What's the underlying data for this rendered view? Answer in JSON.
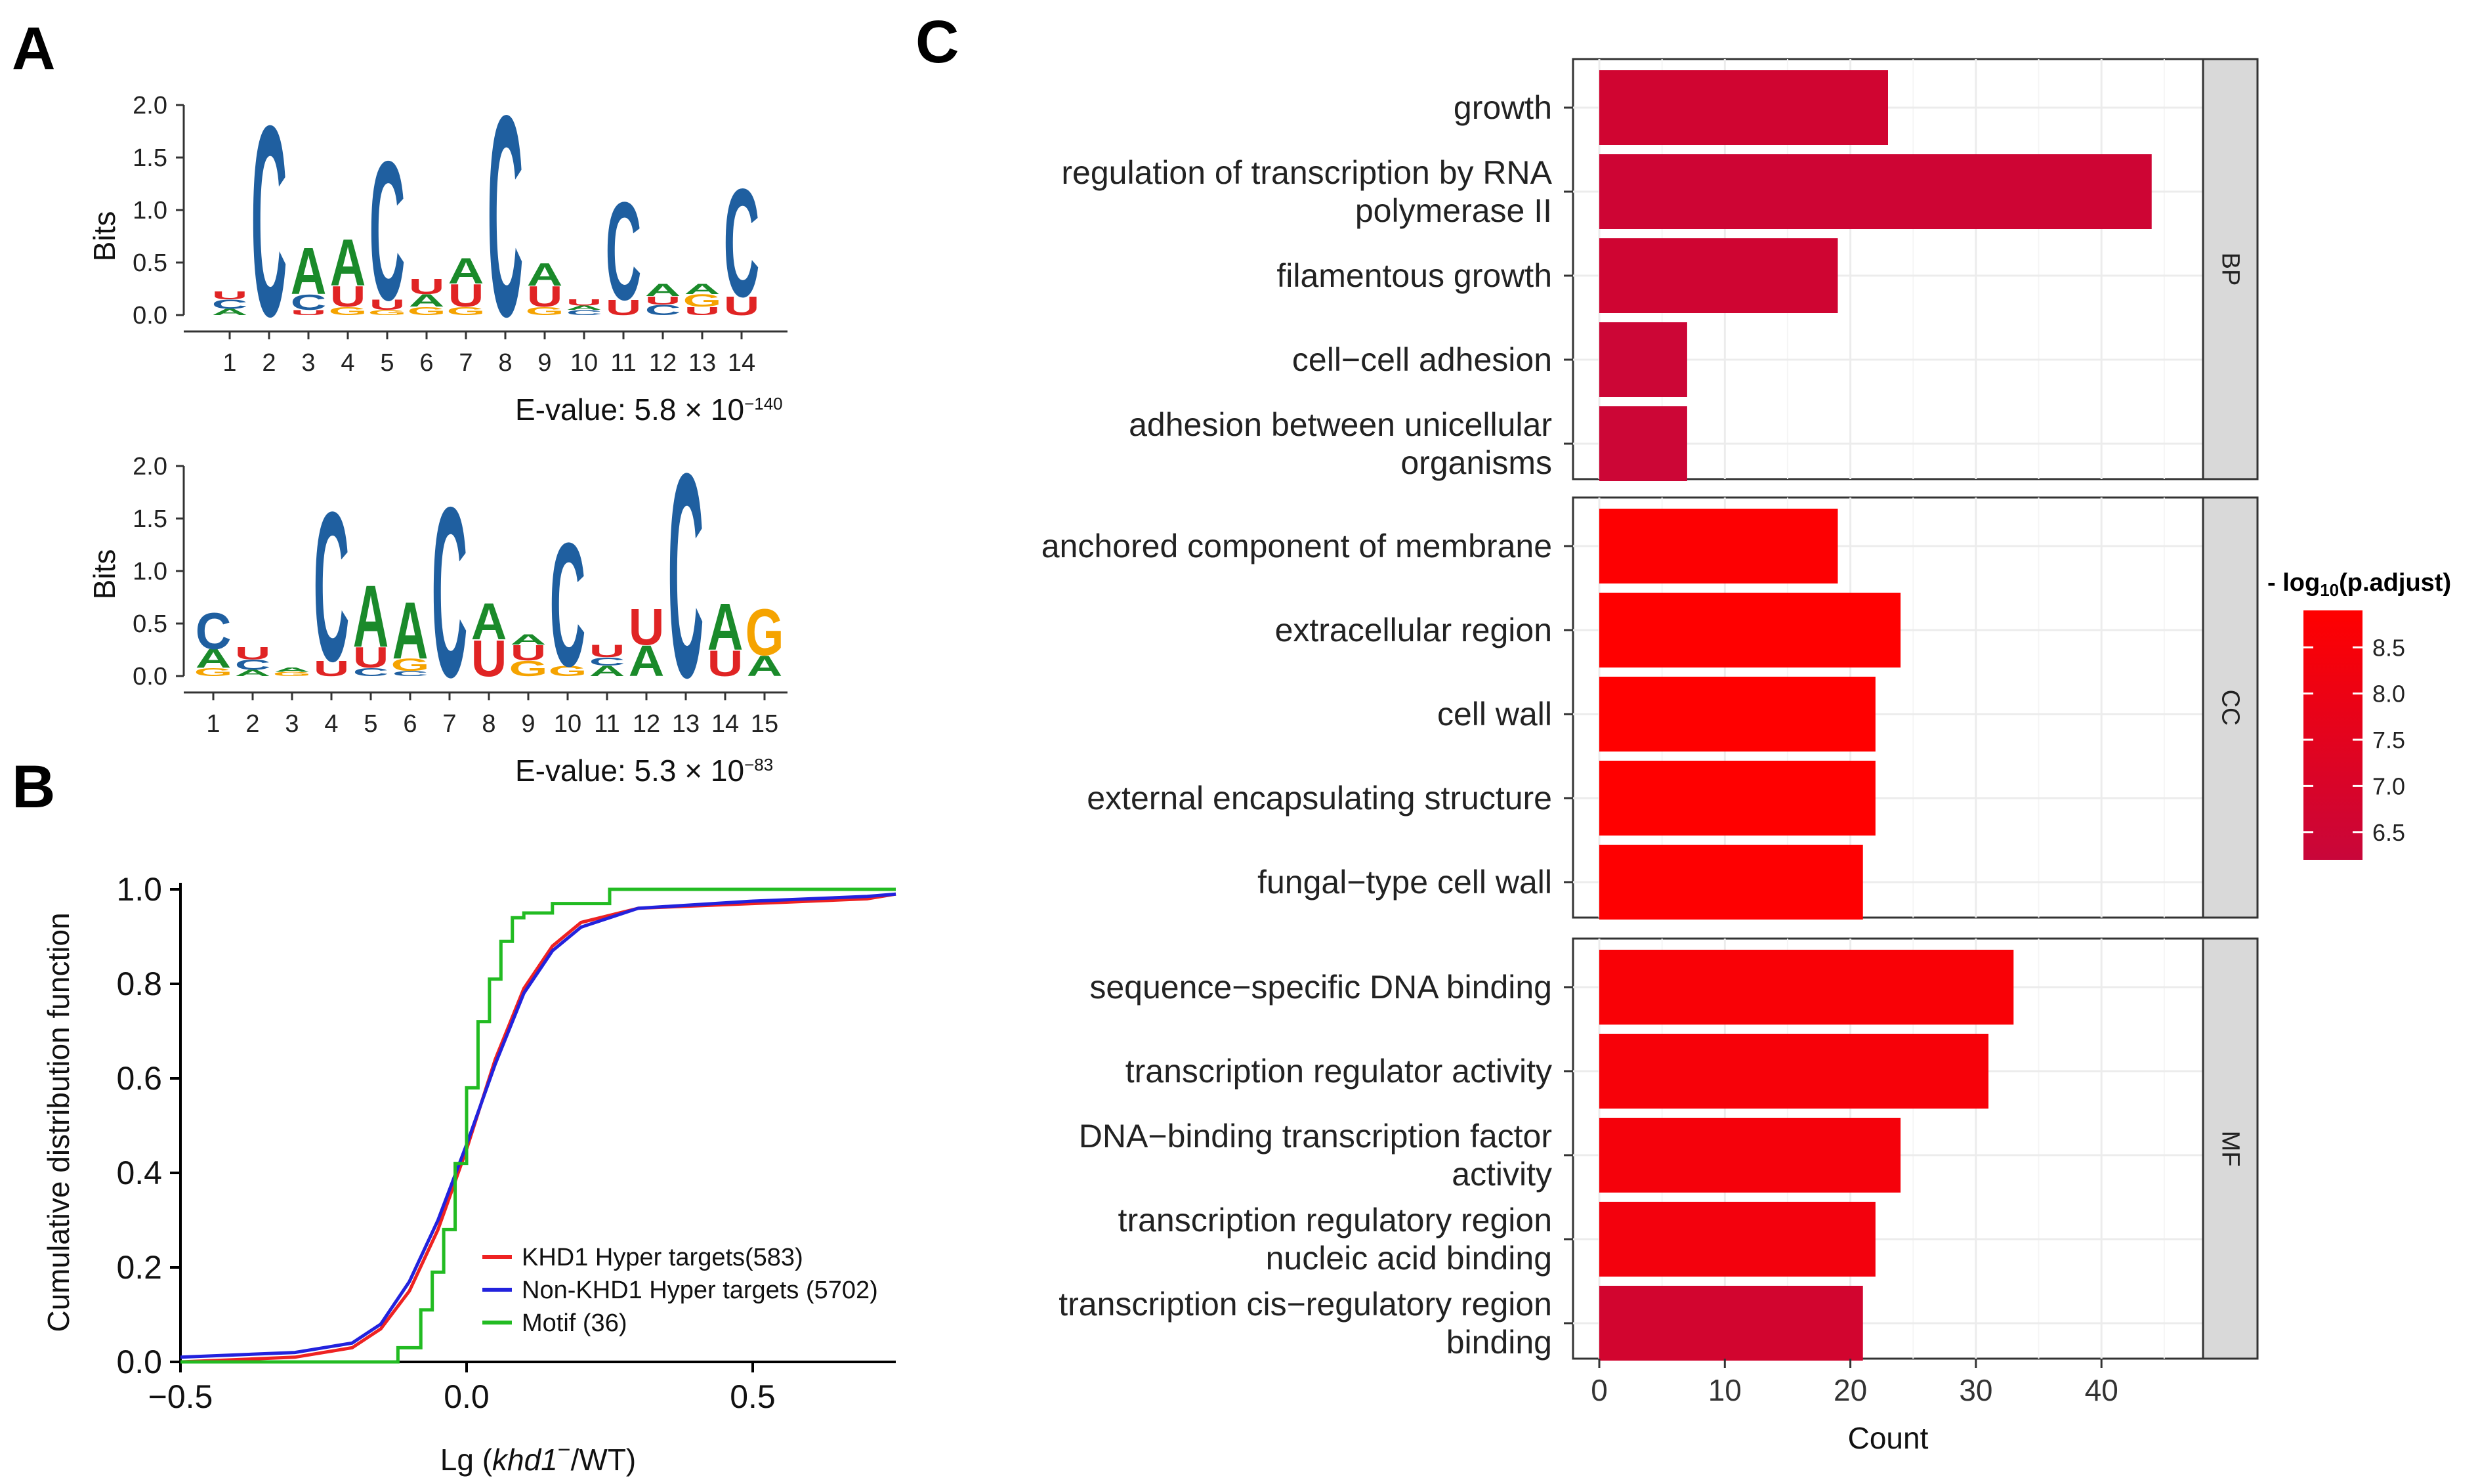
{
  "panels": {
    "A": "A",
    "B": "B",
    "C": "C"
  },
  "colors": {
    "A": "#1a8a2a",
    "C": "#1f5fa0",
    "G": "#f5a300",
    "U": "#e02424",
    "krd": "#ee2222",
    "non": "#2222dd",
    "motif": "#22bb22",
    "gradient_low": "#c8063a",
    "gradient_high": "#ff0000",
    "strip": "#d9d9d9",
    "grid": "#ececec"
  },
  "motif_logos": [
    {
      "ylabel": "Bits",
      "yticks": [
        "0.0",
        "0.5",
        "1.0",
        "1.5",
        "2.0"
      ],
      "evalue_text": "E-value: 5.8 × 10",
      "evalue_exp": "−140",
      "positions": [
        {
          "x": "1",
          "letters": [
            [
              "A",
              0.06
            ],
            [
              "C",
              0.09
            ],
            [
              "U",
              0.08
            ]
          ]
        },
        {
          "x": "2",
          "letters": [
            [
              "C",
              1.85
            ]
          ]
        },
        {
          "x": "3",
          "letters": [
            [
              "U",
              0.05
            ],
            [
              "C",
              0.15
            ],
            [
              "A",
              0.45
            ]
          ]
        },
        {
          "x": "4",
          "letters": [
            [
              "G",
              0.08
            ],
            [
              "U",
              0.2
            ],
            [
              "A",
              0.45
            ]
          ]
        },
        {
          "x": "5",
          "letters": [
            [
              "G",
              0.05
            ],
            [
              "U",
              0.1
            ],
            [
              "C",
              1.35
            ]
          ]
        },
        {
          "x": "6",
          "letters": [
            [
              "G",
              0.08
            ],
            [
              "A",
              0.12
            ],
            [
              "U",
              0.15
            ]
          ]
        },
        {
          "x": "7",
          "letters": [
            [
              "G",
              0.08
            ],
            [
              "U",
              0.22
            ],
            [
              "A",
              0.25
            ]
          ]
        },
        {
          "x": "8",
          "letters": [
            [
              "C",
              1.95
            ]
          ]
        },
        {
          "x": "9",
          "letters": [
            [
              "G",
              0.08
            ],
            [
              "U",
              0.2
            ],
            [
              "A",
              0.22
            ]
          ]
        },
        {
          "x": "10",
          "letters": [
            [
              "C",
              0.05
            ],
            [
              "A",
              0.04
            ],
            [
              "U",
              0.06
            ]
          ]
        },
        {
          "x": "11",
          "letters": [
            [
              "U",
              0.15
            ],
            [
              "C",
              0.95
            ]
          ]
        },
        {
          "x": "12",
          "letters": [
            [
              "C",
              0.1
            ],
            [
              "U",
              0.08
            ],
            [
              "A",
              0.12
            ]
          ]
        },
        {
          "x": "13",
          "letters": [
            [
              "U",
              0.08
            ],
            [
              "G",
              0.12
            ],
            [
              "A",
              0.1
            ]
          ]
        },
        {
          "x": "14",
          "letters": [
            [
              "U",
              0.18
            ],
            [
              "C",
              1.05
            ]
          ]
        }
      ]
    },
    {
      "ylabel": "Bits",
      "yticks": [
        "0.0",
        "0.5",
        "1.0",
        "1.5",
        "2.0"
      ],
      "evalue_text": "E-value: 5.3 × 10",
      "evalue_exp": "−83",
      "positions": [
        {
          "x": "1",
          "letters": [
            [
              "G",
              0.08
            ],
            [
              "A",
              0.18
            ],
            [
              "C",
              0.35
            ]
          ]
        },
        {
          "x": "2",
          "letters": [
            [
              "A",
              0.06
            ],
            [
              "C",
              0.1
            ],
            [
              "U",
              0.12
            ]
          ]
        },
        {
          "x": "3",
          "letters": [
            [
              "G",
              0.04
            ],
            [
              "A",
              0.04
            ]
          ]
        },
        {
          "x": "4",
          "letters": [
            [
              "U",
              0.15
            ],
            [
              "C",
              1.45
            ]
          ]
        },
        {
          "x": "5",
          "letters": [
            [
              "C",
              0.08
            ],
            [
              "U",
              0.2
            ],
            [
              "A",
              0.6
            ]
          ]
        },
        {
          "x": "6",
          "letters": [
            [
              "C",
              0.05
            ],
            [
              "G",
              0.12
            ],
            [
              "A",
              0.55
            ]
          ]
        },
        {
          "x": "7",
          "letters": [
            [
              "C",
              1.65
            ]
          ]
        },
        {
          "x": "8",
          "letters": [
            [
              "U",
              0.35
            ],
            [
              "A",
              0.35
            ]
          ]
        },
        {
          "x": "9",
          "letters": [
            [
              "G",
              0.15
            ],
            [
              "U",
              0.15
            ],
            [
              "A",
              0.1
            ]
          ]
        },
        {
          "x": "10",
          "letters": [
            [
              "G",
              0.1
            ],
            [
              "C",
              1.2
            ]
          ]
        },
        {
          "x": "11",
          "letters": [
            [
              "A",
              0.1
            ],
            [
              "C",
              0.08
            ],
            [
              "U",
              0.12
            ]
          ]
        },
        {
          "x": "12",
          "letters": [
            [
              "A",
              0.3
            ],
            [
              "U",
              0.35
            ]
          ]
        },
        {
          "x": "13",
          "letters": [
            [
              "C",
              1.98
            ]
          ]
        },
        {
          "x": "14",
          "letters": [
            [
              "U",
              0.25
            ],
            [
              "A",
              0.45
            ]
          ]
        },
        {
          "x": "15",
          "letters": [
            [
              "A",
              0.2
            ],
            [
              "G",
              0.45
            ]
          ]
        }
      ]
    }
  ],
  "chart_data": [
    {
      "type": "line",
      "panel": "B",
      "ylabel": "Cumulative distribution function",
      "xlabel_prefix": "Lg (",
      "xlabel_italic": "khd1",
      "xlabel_sup": "−",
      "xlabel_suffix": "/WT)",
      "xlim": [
        -0.5,
        0.75
      ],
      "ylim": [
        0,
        1.0
      ],
      "xticks": [
        -0.5,
        0.0,
        0.5
      ],
      "xtick_labels": [
        "−0.5",
        "0.0",
        "0.5"
      ],
      "yticks": [
        0.0,
        0.2,
        0.4,
        0.6,
        0.8,
        1.0
      ],
      "ytick_labels": [
        "0.0",
        "0.2",
        "0.4",
        "0.6",
        "0.8",
        "1.0"
      ],
      "legend_position": "bottom-right",
      "series": [
        {
          "name": "KHD1 Hyper targets(583)",
          "color_key": "krd",
          "x": [
            -0.5,
            -0.3,
            -0.2,
            -0.15,
            -0.1,
            -0.05,
            0.0,
            0.05,
            0.1,
            0.15,
            0.2,
            0.3,
            0.5,
            0.7,
            0.75
          ],
          "y": [
            0.0,
            0.01,
            0.03,
            0.07,
            0.15,
            0.28,
            0.45,
            0.64,
            0.79,
            0.88,
            0.93,
            0.96,
            0.97,
            0.98,
            0.99
          ]
        },
        {
          "name": "Non-KHD1 Hyper targets (5702)",
          "color_key": "non",
          "x": [
            -0.5,
            -0.3,
            -0.2,
            -0.15,
            -0.1,
            -0.05,
            0.0,
            0.05,
            0.1,
            0.15,
            0.2,
            0.3,
            0.5,
            0.7,
            0.75
          ],
          "y": [
            0.01,
            0.02,
            0.04,
            0.08,
            0.17,
            0.3,
            0.46,
            0.63,
            0.78,
            0.87,
            0.92,
            0.96,
            0.975,
            0.985,
            0.99
          ]
        },
        {
          "name": "Motif (36)",
          "color_key": "motif",
          "step": true,
          "x": [
            -0.5,
            -0.12,
            -0.08,
            -0.06,
            -0.04,
            -0.02,
            0.0,
            0.02,
            0.04,
            0.06,
            0.08,
            0.1,
            0.15,
            0.25,
            0.75
          ],
          "y": [
            0.0,
            0.03,
            0.11,
            0.19,
            0.28,
            0.42,
            0.58,
            0.72,
            0.81,
            0.89,
            0.94,
            0.95,
            0.97,
            1.0,
            1.0
          ]
        }
      ]
    },
    {
      "type": "bar",
      "orientation": "horizontal",
      "panel": "C",
      "xlabel": "Count",
      "xlim": [
        0,
        46
      ],
      "xticks": [
        0,
        10,
        20,
        30,
        40
      ],
      "xtick_labels": [
        "0",
        "10",
        "20",
        "30",
        "40"
      ],
      "colorbar": {
        "title": "- log",
        "title_sub": "10",
        "title_suffix": "(p.adjust)",
        "range": [
          6.2,
          8.9
        ],
        "ticks": [
          6.5,
          7.0,
          7.5,
          8.0,
          8.5
        ],
        "tick_labels": [
          "6.5",
          "7.0",
          "7.5",
          "8.0",
          "8.5"
        ]
      },
      "facets": [
        {
          "label": "BP",
          "bars": [
            {
              "lines": [
                "growth"
              ],
              "count": 23,
              "neglog10": 6.6
            },
            {
              "lines": [
                "regulation of transcription by RNA",
                "polymerase II"
              ],
              "count": 44,
              "neglog10": 6.5
            },
            {
              "lines": [
                "filamentous growth"
              ],
              "count": 19,
              "neglog10": 6.55
            },
            {
              "lines": [
                "cell−cell adhesion"
              ],
              "count": 7,
              "neglog10": 6.4
            },
            {
              "lines": [
                "adhesion between unicellular",
                "organisms"
              ],
              "count": 7,
              "neglog10": 6.4
            }
          ]
        },
        {
          "label": "CC",
          "bars": [
            {
              "lines": [
                "anchored component of membrane"
              ],
              "count": 19,
              "neglog10": 8.8
            },
            {
              "lines": [
                "extracellular region"
              ],
              "count": 24,
              "neglog10": 8.9
            },
            {
              "lines": [
                "cell wall"
              ],
              "count": 22,
              "neglog10": 8.9
            },
            {
              "lines": [
                "external encapsulating structure"
              ],
              "count": 22,
              "neglog10": 8.9
            },
            {
              "lines": [
                "fungal−type cell wall"
              ],
              "count": 21,
              "neglog10": 8.85
            }
          ]
        },
        {
          "label": "MF",
          "bars": [
            {
              "lines": [
                "sequence−specific DNA binding"
              ],
              "count": 33,
              "neglog10": 8.6
            },
            {
              "lines": [
                "transcription regulator activity"
              ],
              "count": 31,
              "neglog10": 8.5
            },
            {
              "lines": [
                "DNA−binding transcription factor",
                "activity"
              ],
              "count": 24,
              "neglog10": 8.4
            },
            {
              "lines": [
                "transcription regulatory region",
                "nucleic acid binding"
              ],
              "count": 22,
              "neglog10": 8.3
            },
            {
              "lines": [
                "transcription cis−regulatory region",
                "binding"
              ],
              "count": 21,
              "neglog10": 6.7
            }
          ]
        }
      ]
    }
  ]
}
